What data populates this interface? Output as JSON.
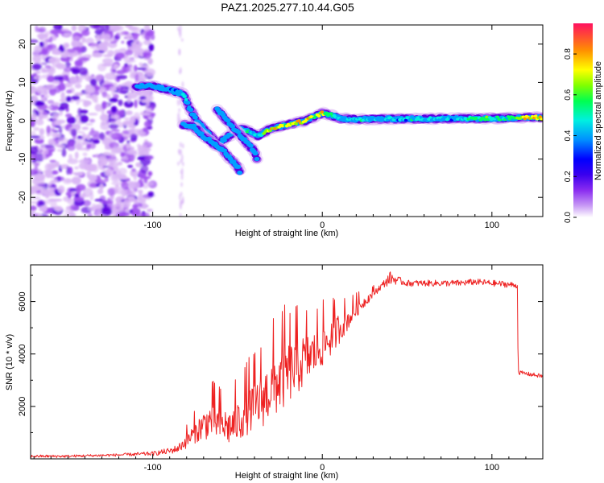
{
  "title": "PAZ1.2025.277.10.44.G05",
  "colors": {
    "snr_line": "#ee2222",
    "ridge_core": "#ff2a55",
    "noise": "#6a1ee8",
    "colormap": [
      "#ffffff",
      "#d9b5f5",
      "#a050f0",
      "#5a00e0",
      "#0000ff",
      "#00a0ff",
      "#00f0e0",
      "#00ff60",
      "#80ff00",
      "#ffff00",
      "#ff9000",
      "#ff1040"
    ]
  },
  "chart_data": [
    {
      "type": "heatmap",
      "title": "PAZ1.2025.277.10.44.G05",
      "xlabel": "Height of straight line (km)",
      "ylabel": "Frequency (Hz)",
      "xlim": [
        -172,
        130
      ],
      "ylim": [
        -25,
        25
      ],
      "xticks": [
        -100,
        0,
        100
      ],
      "yticks": [
        -20,
        -10,
        0,
        10,
        20
      ],
      "colorbar": {
        "label": "Normalized spectral amplitude",
        "range": [
          0,
          0.95
        ],
        "ticks": [
          "0.0",
          "0.2",
          "0.4",
          "0.6",
          "0.8"
        ]
      },
      "ridge": {
        "x": [
          -110,
          -100,
          -90,
          -82,
          -78,
          -74,
          -70,
          -66,
          -62,
          -55,
          -48,
          -42,
          -38,
          -34,
          -30,
          -25,
          -20,
          -15,
          -10,
          -5,
          0,
          5,
          10,
          20,
          40,
          60,
          80,
          95,
          110,
          120,
          130
        ],
        "y": [
          9,
          9,
          8,
          7,
          3,
          0,
          -2,
          -4,
          -6,
          -4,
          -2,
          -3,
          -4,
          -3,
          -2,
          -1.5,
          -1,
          -0.5,
          0,
          1,
          2,
          1.5,
          0.6,
          0.4,
          0.5,
          0.5,
          0.6,
          0.6,
          0.7,
          0.9,
          0.8
        ],
        "amp": [
          0.3,
          0.4,
          0.45,
          0.5,
          0.45,
          0.4,
          0.45,
          0.4,
          0.35,
          0.4,
          0.5,
          0.55,
          0.45,
          0.7,
          0.85,
          0.8,
          0.75,
          0.8,
          0.85,
          0.75,
          0.8,
          0.6,
          0.5,
          0.5,
          0.5,
          0.5,
          0.5,
          0.6,
          0.55,
          0.9,
          0.8
        ]
      },
      "ridge_branch_lower": {
        "x": [
          -82,
          -76,
          -70,
          -64,
          -58,
          -50,
          -48
        ],
        "y": [
          -1,
          -1.5,
          -4,
          -6,
          -8,
          -12,
          -14
        ]
      },
      "ridge_branch_upper": {
        "x": [
          -62,
          -58,
          -54,
          -50,
          -46,
          -40,
          -38
        ],
        "y": [
          3,
          1,
          -1,
          -3,
          -5,
          -8,
          -11
        ]
      },
      "noise_region": {
        "x": [
          -172,
          -100
        ],
        "y": [
          -25,
          25
        ]
      }
    },
    {
      "type": "line",
      "xlabel": "Height of straight line (km)",
      "ylabel": "SNR (10 * v/v)",
      "xlim": [
        -172,
        130
      ],
      "ylim": [
        0,
        7400
      ],
      "xticks": [
        -100,
        0,
        100
      ],
      "yticks": [
        2000,
        4000,
        6000
      ],
      "series": [
        {
          "name": "SNR",
          "x": [
            -172,
            -150,
            -120,
            -100,
            -90,
            -85,
            -80,
            -75,
            -70,
            -65,
            -60,
            -55,
            -50,
            -45,
            -40,
            -35,
            -30,
            -25,
            -20,
            -15,
            -10,
            -5,
            0,
            5,
            10,
            15,
            20,
            25,
            30,
            35,
            40,
            45,
            50,
            60,
            70,
            80,
            90,
            100,
            110,
            115,
            115.5,
            120,
            125,
            130
          ],
          "y": [
            100,
            100,
            150,
            200,
            300,
            400,
            700,
            1000,
            1300,
            1500,
            1300,
            1200,
            1400,
            1800,
            2000,
            2300,
            2700,
            3000,
            3300,
            3500,
            3800,
            4000,
            4300,
            4600,
            5000,
            5300,
            5700,
            6000,
            6300,
            6600,
            6900,
            6800,
            6700,
            6700,
            6700,
            6700,
            6750,
            6700,
            6650,
            6600,
            3300,
            3250,
            3200,
            3150
          ],
          "noise": [
            50,
            50,
            50,
            80,
            120,
            150,
            300,
            400,
            600,
            700,
            700,
            700,
            800,
            900,
            1000,
            1100,
            1200,
            1300,
            1200,
            1100,
            1000,
            900,
            800,
            700,
            600,
            400,
            300,
            200,
            150,
            120,
            250,
            150,
            120,
            120,
            120,
            120,
            120,
            120,
            120,
            100,
            80,
            80,
            80,
            80
          ]
        }
      ]
    }
  ]
}
